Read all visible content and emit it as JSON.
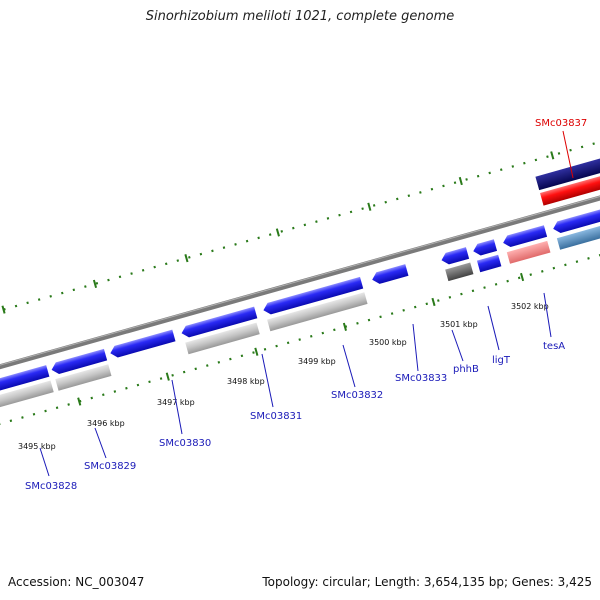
{
  "title": "Sinorhizobium meliloti 1021, complete genome",
  "footer": {
    "accession": "Accession: NC_003047",
    "summary": "Topology: circular; Length: 3,654,135 bp; Genes: 3,425"
  },
  "colors": {
    "gene_blue": "#1a1aee",
    "label_blue": "#1a1ab8",
    "label_red": "#dd0000",
    "ruler_tick": "#2a7a1a",
    "backbone": "#7a7a7a",
    "feature_grey": "#c0c0c0",
    "feature_darkgrey": "#666666",
    "feature_navy": "#0a0a80",
    "feature_red": "#ee1111",
    "feature_pink": "#f08080",
    "feature_steelblue": "#4682b4"
  },
  "ruler_labels": [
    "3495 kbp",
    "3496 kbp",
    "3497 kbp",
    "3498 kbp",
    "3499 kbp",
    "3500 kbp",
    "3501 kbp",
    "3502 kbp"
  ],
  "gene_labels": [
    {
      "name": "SMc03828",
      "color": "blue"
    },
    {
      "name": "SMc03829",
      "color": "blue"
    },
    {
      "name": "SMc03830",
      "color": "blue"
    },
    {
      "name": "SMc03831",
      "color": "blue"
    },
    {
      "name": "SMc03832",
      "color": "blue"
    },
    {
      "name": "SMc03833",
      "color": "blue"
    },
    {
      "name": "phhB",
      "color": "blue"
    },
    {
      "name": "ligT",
      "color": "blue"
    },
    {
      "name": "tesA",
      "color": "blue"
    },
    {
      "name": "SMc03837",
      "color": "red"
    }
  ]
}
